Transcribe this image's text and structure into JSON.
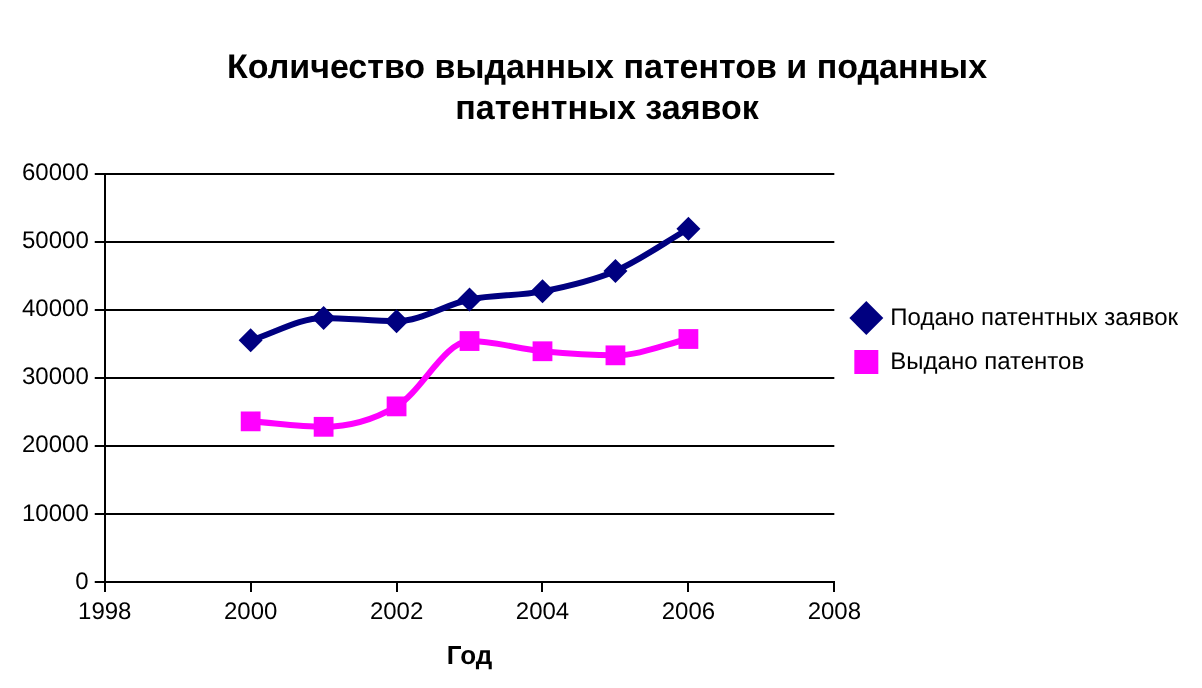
{
  "chart_data": {
    "type": "line",
    "title": "Количество выданных патентов и поданных патентных заявок",
    "xlabel": "Год",
    "x": [
      2000,
      2001,
      2002,
      2003,
      2004,
      2005,
      2006
    ],
    "series": [
      {
        "name": "Подано патентных заявок",
        "color": "#000080",
        "marker": "diamond",
        "values": [
          35500,
          38800,
          38300,
          41500,
          42700,
          45700,
          51900
        ]
      },
      {
        "name": "Выдано патентов",
        "color": "#ff00ff",
        "marker": "square",
        "values": [
          23600,
          22800,
          25800,
          35400,
          33900,
          33300,
          35700
        ]
      }
    ],
    "xlim": [
      1998,
      2008
    ],
    "xticks": [
      1998,
      2000,
      2002,
      2004,
      2006,
      2008
    ],
    "ylim": [
      0,
      60000
    ],
    "yticks": [
      0,
      10000,
      20000,
      30000,
      40000,
      50000,
      60000
    ],
    "grid": "y",
    "legend": "right"
  }
}
